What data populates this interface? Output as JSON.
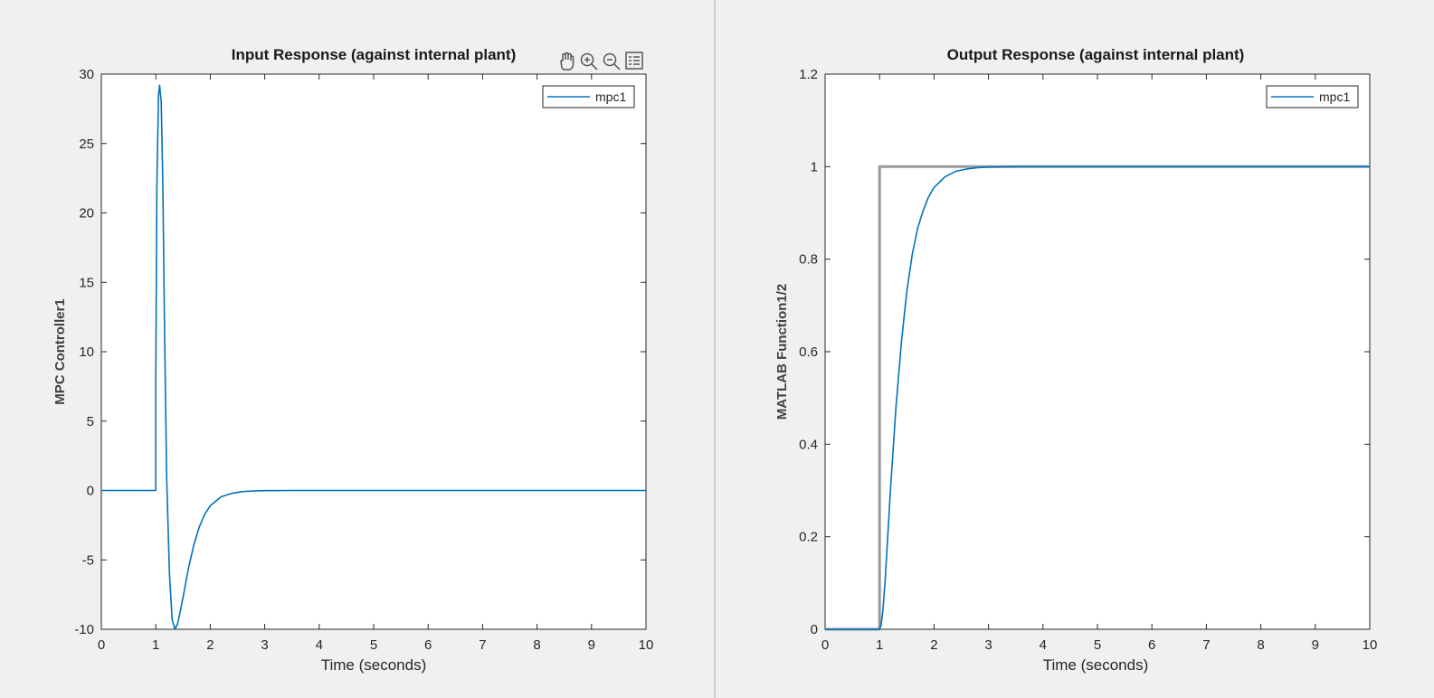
{
  "colors": {
    "background": "#f0f0f0",
    "series": "#0072bd",
    "reference": "#999999",
    "divider": "#b0b0b0"
  },
  "toolbar": {
    "icons": [
      "pan-icon",
      "zoom-in-icon",
      "zoom-out-icon",
      "legend-toggle-icon"
    ]
  },
  "chart_data": [
    {
      "type": "line",
      "title": "Input Response (against internal plant)",
      "xlabel": "Time (seconds)",
      "ylabel": "MPC Controller1",
      "xlim": [
        0,
        10
      ],
      "ylim": [
        -10,
        30
      ],
      "xticks": [
        "0",
        "1",
        "2",
        "3",
        "4",
        "5",
        "6",
        "7",
        "8",
        "9",
        "10"
      ],
      "yticks": [
        "-10",
        "-5",
        "0",
        "5",
        "10",
        "15",
        "20",
        "25",
        "30"
      ],
      "legend": [
        "mpc1"
      ],
      "legend_position": "top-right",
      "grid": false,
      "series": [
        {
          "name": "mpc1",
          "x": [
            0,
            1.0,
            1.0,
            1.02,
            1.05,
            1.07,
            1.1,
            1.13,
            1.16,
            1.2,
            1.25,
            1.3,
            1.35,
            1.4,
            1.45,
            1.5,
            1.6,
            1.7,
            1.8,
            1.9,
            2.0,
            2.2,
            2.4,
            2.6,
            2.8,
            3.0,
            3.5,
            4.0,
            10
          ],
          "y": [
            0,
            0,
            8,
            22,
            28.5,
            29.2,
            28,
            22,
            12,
            1,
            -6,
            -9.3,
            -10,
            -9.6,
            -8.7,
            -7.7,
            -5.6,
            -3.9,
            -2.6,
            -1.7,
            -1.1,
            -0.45,
            -0.2,
            -0.08,
            -0.03,
            -0.01,
            0,
            0,
            0
          ]
        }
      ]
    },
    {
      "type": "line",
      "title": "Output Response (against internal plant)",
      "xlabel": "Time (seconds)",
      "ylabel": "MATLAB Function1/2",
      "xlim": [
        0,
        10
      ],
      "ylim": [
        0,
        1.2
      ],
      "xticks": [
        "0",
        "1",
        "2",
        "3",
        "4",
        "5",
        "6",
        "7",
        "8",
        "9",
        "10"
      ],
      "yticks": [
        "0",
        "0.2",
        "0.4",
        "0.6",
        "0.8",
        "1",
        "1.2"
      ],
      "legend": [
        "mpc1"
      ],
      "legend_position": "top-right",
      "grid": false,
      "series": [
        {
          "role": "reference",
          "x": [
            0,
            1.0,
            1.0,
            10
          ],
          "y": [
            0,
            0,
            1,
            1
          ]
        },
        {
          "name": "mpc1",
          "x": [
            0,
            1.0,
            1.03,
            1.06,
            1.1,
            1.15,
            1.2,
            1.3,
            1.4,
            1.5,
            1.6,
            1.7,
            1.8,
            1.9,
            2.0,
            2.2,
            2.4,
            2.6,
            2.8,
            3.0,
            3.5,
            4.0,
            10
          ],
          "y": [
            0,
            0,
            0.01,
            0.04,
            0.1,
            0.2,
            0.3,
            0.48,
            0.62,
            0.73,
            0.81,
            0.867,
            0.905,
            0.935,
            0.955,
            0.978,
            0.99,
            0.995,
            0.998,
            0.999,
            1.0,
            1.0,
            1.0
          ]
        }
      ]
    }
  ]
}
